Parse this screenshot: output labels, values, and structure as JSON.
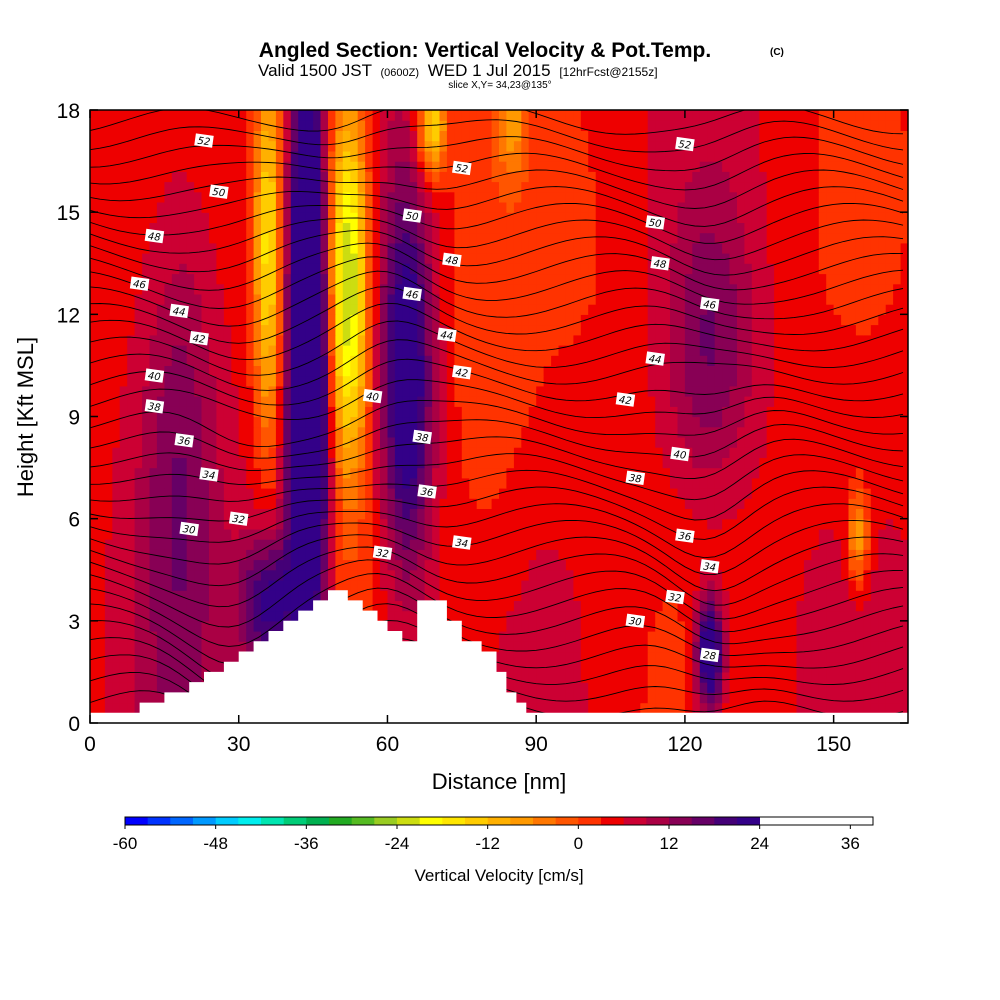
{
  "title": {
    "main": "Angled Section: Vertical Velocity & Pot.Temp.",
    "copyright": "(C)",
    "valid_prefix": "Valid 1500 JST",
    "valid_utc": "(0600Z)",
    "valid_date": "WED 1 Jul 2015",
    "forecast": "[12hrFcst@2155z]",
    "slice": "slice X,Y= 34,23@135°"
  },
  "chart_data": {
    "type": "heatmap",
    "xlabel": "Distance [nm]",
    "ylabel": "Height [Kft MSL]",
    "xlim": [
      0,
      165
    ],
    "ylim": [
      0,
      18
    ],
    "x_ticks": [
      0,
      30,
      60,
      90,
      120,
      150
    ],
    "y_ticks": [
      0,
      3,
      6,
      9,
      12,
      15,
      18
    ],
    "colorbar": {
      "title": "Vertical Velocity [cm/s]",
      "min": -60,
      "max": 39,
      "step": 3,
      "tick_values": [
        -60,
        -48,
        -36,
        -24,
        -12,
        0,
        12,
        24,
        36
      ],
      "colors": [
        "#0000ff",
        "#0033ff",
        "#0066ff",
        "#0099ff",
        "#00ccff",
        "#00eeee",
        "#00e5b0",
        "#00cc77",
        "#00b050",
        "#22aa22",
        "#55bb22",
        "#99cc22",
        "#ccdd11",
        "#ffff00",
        "#ffe600",
        "#ffcc00",
        "#ffb000",
        "#ff9900",
        "#ff7700",
        "#ff5500",
        "#ff3300",
        "#ee0000",
        "#cc0033",
        "#aa0044",
        "#880055",
        "#660066",
        "#440077",
        "#330088"
      ]
    },
    "terrain_kft": [
      [
        0,
        0.3
      ],
      [
        10,
        0.3
      ],
      [
        10,
        0.6
      ],
      [
        15,
        0.6
      ],
      [
        15,
        0.9
      ],
      [
        20,
        0.9
      ],
      [
        20,
        1.2
      ],
      [
        23,
        1.2
      ],
      [
        23,
        1.5
      ],
      [
        27,
        1.5
      ],
      [
        27,
        1.8
      ],
      [
        30,
        1.8
      ],
      [
        30,
        2.1
      ],
      [
        33,
        2.1
      ],
      [
        33,
        2.4
      ],
      [
        36,
        2.4
      ],
      [
        36,
        2.7
      ],
      [
        39,
        2.7
      ],
      [
        39,
        3.0
      ],
      [
        42,
        3.0
      ],
      [
        42,
        3.3
      ],
      [
        45,
        3.3
      ],
      [
        45,
        3.6
      ],
      [
        48,
        3.6
      ],
      [
        48,
        3.9
      ],
      [
        52,
        3.9
      ],
      [
        52,
        3.6
      ],
      [
        55,
        3.6
      ],
      [
        55,
        3.3
      ],
      [
        58,
        3.3
      ],
      [
        58,
        3.0
      ],
      [
        60,
        3.0
      ],
      [
        60,
        2.7
      ],
      [
        63,
        2.7
      ],
      [
        63,
        2.4
      ],
      [
        66,
        2.4
      ],
      [
        66,
        3.6
      ],
      [
        72,
        3.6
      ],
      [
        72,
        3.0
      ],
      [
        75,
        3.0
      ],
      [
        75,
        2.4
      ],
      [
        79,
        2.4
      ],
      [
        79,
        2.1
      ],
      [
        82,
        2.1
      ],
      [
        82,
        1.5
      ],
      [
        84,
        1.5
      ],
      [
        84,
        0.9
      ],
      [
        86,
        0.9
      ],
      [
        86,
        0.6
      ],
      [
        88,
        0.6
      ],
      [
        88,
        0.3
      ],
      [
        165,
        0.3
      ]
    ],
    "velocity_cells": [
      {
        "x": 44,
        "y": 13,
        "value": 30,
        "sx": 2.5,
        "sy": 4.5
      },
      {
        "x": 44,
        "y": 7,
        "value": 22,
        "sx": 3,
        "sy": 4
      },
      {
        "x": 36,
        "y": 3.5,
        "value": 18,
        "sx": 4,
        "sy": 1.5
      },
      {
        "x": 64,
        "y": 10,
        "value": 22,
        "sx": 3.5,
        "sy": 4
      },
      {
        "x": 125,
        "y": 2,
        "value": 26,
        "sx": 2,
        "sy": 1.2
      },
      {
        "x": 52,
        "y": 13,
        "value": -32,
        "sx": 3,
        "sy": 4
      },
      {
        "x": 36,
        "y": 14,
        "value": -22,
        "sx": 2,
        "sy": 4
      },
      {
        "x": 69,
        "y": 17.5,
        "value": -20,
        "sx": 2,
        "sy": 1
      },
      {
        "x": 85,
        "y": 17.5,
        "value": -10,
        "sx": 2,
        "sy": 1
      },
      {
        "x": 155,
        "y": 5.5,
        "value": -14,
        "sx": 1.5,
        "sy": 1
      },
      {
        "x": 80,
        "y": 9,
        "value": -3,
        "sx": 6,
        "sy": 6
      },
      {
        "x": 108,
        "y": 14,
        "value": -2,
        "sx": 10,
        "sy": 4
      },
      {
        "x": 18,
        "y": 8,
        "value": 10,
        "sx": 6,
        "sy": 6
      },
      {
        "x": 125,
        "y": 11,
        "value": 9,
        "sx": 6,
        "sy": 3
      }
    ],
    "theta_contours": [
      {
        "value": 28,
        "label_at": [
          125,
          2.0
        ]
      },
      {
        "value": 30,
        "label_at": [
          20,
          5.7
        ]
      },
      {
        "value": 30,
        "label_at": [
          110,
          3.0
        ]
      },
      {
        "value": 32,
        "label_at": [
          30,
          6.0
        ]
      },
      {
        "value": 32,
        "label_at": [
          59,
          5.0
        ]
      },
      {
        "value": 32,
        "label_at": [
          118,
          3.7
        ]
      },
      {
        "value": 34,
        "label_at": [
          24,
          7.3
        ]
      },
      {
        "value": 34,
        "label_at": [
          75,
          5.3
        ]
      },
      {
        "value": 34,
        "label_at": [
          125,
          4.6
        ]
      },
      {
        "value": 36,
        "label_at": [
          19,
          8.3
        ]
      },
      {
        "value": 36,
        "label_at": [
          68,
          6.8
        ]
      },
      {
        "value": 36,
        "label_at": [
          120,
          5.5
        ]
      },
      {
        "value": 38,
        "label_at": [
          13,
          9.3
        ]
      },
      {
        "value": 38,
        "label_at": [
          67,
          8.4
        ]
      },
      {
        "value": 38,
        "label_at": [
          110,
          7.2
        ]
      },
      {
        "value": 40,
        "label_at": [
          13,
          10.2
        ]
      },
      {
        "value": 40,
        "label_at": [
          57,
          9.6
        ]
      },
      {
        "value": 40,
        "label_at": [
          119,
          7.9
        ]
      },
      {
        "value": 42,
        "label_at": [
          22,
          11.3
        ]
      },
      {
        "value": 42,
        "label_at": [
          75,
          10.3
        ]
      },
      {
        "value": 42,
        "label_at": [
          108,
          9.5
        ]
      },
      {
        "value": 44,
        "label_at": [
          18,
          12.1
        ]
      },
      {
        "value": 44,
        "label_at": [
          72,
          11.4
        ]
      },
      {
        "value": 44,
        "label_at": [
          114,
          10.7
        ]
      },
      {
        "value": 46,
        "label_at": [
          10,
          12.9
        ]
      },
      {
        "value": 46,
        "label_at": [
          65,
          12.6
        ]
      },
      {
        "value": 46,
        "label_at": [
          125,
          12.3
        ]
      },
      {
        "value": 48,
        "label_at": [
          13,
          14.3
        ]
      },
      {
        "value": 48,
        "label_at": [
          73,
          13.6
        ]
      },
      {
        "value": 48,
        "label_at": [
          115,
          13.5
        ]
      },
      {
        "value": 50,
        "label_at": [
          26,
          15.6
        ]
      },
      {
        "value": 50,
        "label_at": [
          65,
          14.9
        ]
      },
      {
        "value": 50,
        "label_at": [
          114,
          14.7
        ]
      },
      {
        "value": 52,
        "label_at": [
          23,
          17.1
        ]
      },
      {
        "value": 52,
        "label_at": [
          75,
          16.3
        ]
      },
      {
        "value": 52,
        "label_at": [
          120,
          17.0
        ]
      }
    ]
  }
}
